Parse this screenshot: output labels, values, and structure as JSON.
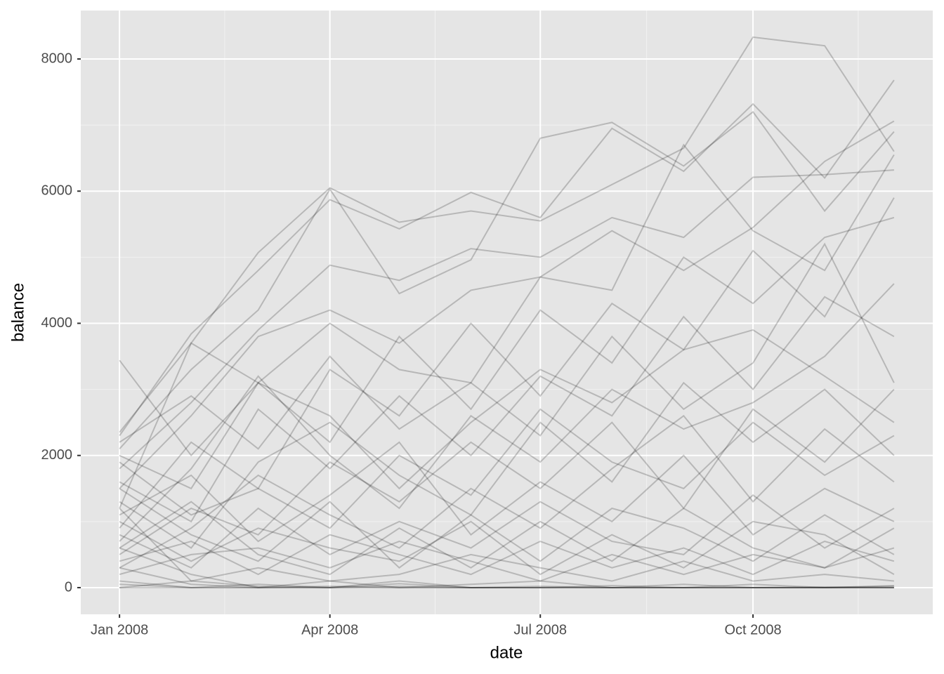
{
  "chart_data": {
    "type": "line",
    "x_label": "date",
    "y_label": "balance",
    "x": [
      "2008-01",
      "2008-02",
      "2008-03",
      "2008-04",
      "2008-05",
      "2008-06",
      "2008-07",
      "2008-08",
      "2008-09",
      "2008-10",
      "2008-11",
      "2008-12"
    ],
    "xticks": [
      {
        "value": "2008-01",
        "label": "Jan 2008"
      },
      {
        "value": "2008-04",
        "label": "Apr 2008"
      },
      {
        "value": "2008-07",
        "label": "Jul 2008"
      },
      {
        "value": "2008-10",
        "label": "Oct 2008"
      }
    ],
    "ylim": [
      -404,
      8733
    ],
    "yticks": [
      0,
      2000,
      4000,
      6000,
      8000
    ],
    "grid": true,
    "minor_grid": true,
    "color": "#000000",
    "alpha": 0.2,
    "series": [
      {
        "values": [
          3440,
          2000,
          3100,
          2600,
          1500,
          2500,
          3300,
          2800,
          3600,
          3900,
          3200,
          2500
        ]
      },
      {
        "values": [
          2350,
          3700,
          5070,
          6050,
          5530,
          5700,
          5550,
          6100,
          6650,
          8330,
          8200,
          6600
        ]
      },
      {
        "values": [
          2300,
          3840,
          4800,
          5870,
          5430,
          5980,
          5600,
          6950,
          6300,
          7320,
          6200,
          7680
        ]
      },
      {
        "values": [
          2100,
          3300,
          4200,
          6030,
          4450,
          4960,
          6800,
          7040,
          6380,
          7200,
          5700,
          6900
        ]
      },
      {
        "values": [
          1800,
          2800,
          3900,
          4880,
          4650,
          5130,
          5000,
          5600,
          5300,
          6210,
          6250,
          6320
        ]
      },
      {
        "values": [
          1500,
          2600,
          3800,
          4200,
          3700,
          4500,
          4700,
          5400,
          4800,
          5450,
          6450,
          7060
        ]
      },
      {
        "values": [
          1200,
          3700,
          3100,
          4000,
          3300,
          3100,
          4700,
          4500,
          6700,
          5400,
          4800,
          6550
        ]
      },
      {
        "values": [
          2000,
          1500,
          3100,
          2200,
          3800,
          2700,
          4200,
          3400,
          5000,
          4300,
          5300,
          5600
        ]
      },
      {
        "values": [
          900,
          2200,
          1500,
          3300,
          2600,
          4000,
          2900,
          4300,
          3600,
          5100,
          4100,
          5900
        ]
      },
      {
        "values": [
          1600,
          1000,
          2700,
          1800,
          2900,
          2000,
          3200,
          2600,
          4100,
          3000,
          4400,
          3800
        ]
      },
      {
        "values": [
          2200,
          2900,
          2100,
          3500,
          2400,
          3100,
          2300,
          3800,
          2700,
          3400,
          5200,
          3100
        ]
      },
      {
        "values": [
          700,
          1800,
          3200,
          2000,
          1200,
          2600,
          1900,
          3000,
          2400,
          2800,
          3500,
          4600
        ]
      },
      {
        "values": [
          1300,
          600,
          1900,
          2500,
          1700,
          1100,
          2500,
          1600,
          3100,
          2200,
          3000,
          2000
        ]
      },
      {
        "values": [
          500,
          1200,
          800,
          1900,
          1300,
          2200,
          1500,
          2500,
          1200,
          2700,
          1900,
          3000
        ]
      },
      {
        "values": [
          1900,
          1100,
          1500,
          900,
          2000,
          1400,
          2700,
          1900,
          1500,
          2500,
          1700,
          2300
        ]
      },
      {
        "values": [
          300,
          900,
          1700,
          1100,
          600,
          1500,
          900,
          1800,
          2600,
          1300,
          2400,
          1600
        ]
      },
      {
        "values": [
          1100,
          1700,
          700,
          1400,
          2200,
          800,
          1600,
          1000,
          2000,
          800,
          1500,
          1000
        ]
      },
      {
        "values": [
          800,
          300,
          1200,
          500,
          1000,
          600,
          1300,
          700,
          500,
          1400,
          600,
          1200
        ]
      },
      {
        "values": [
          1500,
          800,
          400,
          1300,
          300,
          1100,
          400,
          1200,
          900,
          400,
          1100,
          500
        ]
      },
      {
        "values": [
          600,
          1300,
          500,
          200,
          900,
          300,
          1000,
          400,
          1200,
          600,
          300,
          900
        ]
      },
      {
        "values": [
          1000,
          400,
          900,
          600,
          400,
          1000,
          200,
          800,
          300,
          1000,
          800,
          200
        ]
      },
      {
        "values": [
          400,
          700,
          200,
          800,
          500,
          200,
          700,
          300,
          600,
          200,
          700,
          400
        ]
      },
      {
        "values": [
          200,
          500,
          600,
          300,
          700,
          400,
          100,
          500,
          200,
          500,
          300,
          600
        ]
      },
      {
        "values": [
          1200,
          100,
          300,
          100,
          200,
          500,
          300,
          100,
          400,
          100,
          200,
          100
        ]
      },
      {
        "values": [
          100,
          0,
          50,
          0,
          20,
          0,
          0,
          30,
          0,
          0,
          10,
          0
        ]
      },
      {
        "values": [
          300,
          50,
          0,
          100,
          0,
          50,
          100,
          0,
          0,
          50,
          0,
          20
        ]
      },
      {
        "values": [
          0,
          100,
          20,
          0,
          60,
          0,
          20,
          0,
          50,
          0,
          0,
          30
        ]
      },
      {
        "values": [
          50,
          0,
          0,
          20,
          0,
          0,
          0,
          0,
          0,
          0,
          0,
          0
        ]
      },
      {
        "values": [
          0,
          0,
          0,
          0,
          0,
          0,
          0,
          0,
          0,
          0,
          0,
          0
        ]
      },
      {
        "values": [
          600,
          200,
          0,
          0,
          100,
          0,
          0,
          0,
          0,
          0,
          0,
          0
        ]
      }
    ]
  }
}
